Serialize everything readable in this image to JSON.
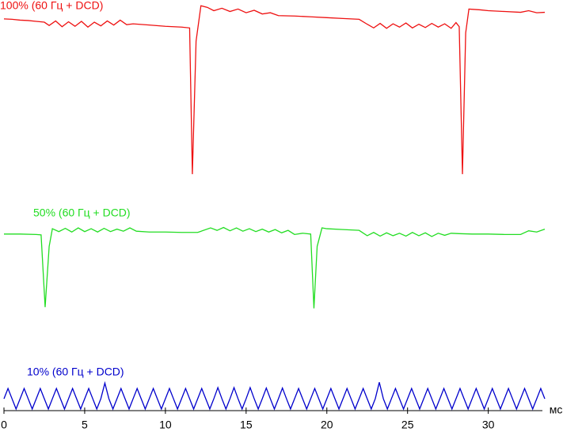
{
  "chart_data": {
    "type": "line",
    "xlabel": "мс",
    "xlim": [
      0,
      33.5
    ],
    "xticks": [
      0,
      5,
      10,
      15,
      20,
      25,
      30
    ],
    "ylim": [
      0,
      100
    ],
    "series": [
      {
        "name": "100% (60 Гц + DCD)",
        "color": "#ee1111",
        "x": [
          0,
          0.5,
          1,
          1.5,
          2,
          2.5,
          2.8,
          3.2,
          3.6,
          4,
          4.4,
          4.8,
          5.2,
          5.6,
          6,
          6.4,
          6.8,
          7.2,
          7.6,
          8,
          9,
          10,
          11,
          11.5,
          11.67,
          11.9,
          12.2,
          12.6,
          13,
          13.5,
          14,
          14.5,
          15,
          15.5,
          16,
          16.5,
          17,
          18,
          19,
          20,
          21,
          22,
          22.5,
          22.9,
          23.3,
          23.7,
          24.1,
          24.5,
          24.9,
          25.3,
          25.7,
          26.1,
          26.5,
          26.9,
          27.3,
          27.7,
          28,
          28.2,
          28.4,
          28.6,
          28.8,
          29.5,
          30,
          31,
          32,
          32.5,
          33,
          33.5
        ],
        "values": [
          95.4,
          95.3,
          95.1,
          95.0,
          94.8,
          94.6,
          93.8,
          94.9,
          93.5,
          94.7,
          93.6,
          94.8,
          93.4,
          94.6,
          93.7,
          94.9,
          93.9,
          95.1,
          94.0,
          94.2,
          93.9,
          93.6,
          93.4,
          93.2,
          57.6,
          90,
          98.6,
          98.2,
          97.4,
          98.0,
          97.2,
          97.8,
          96.9,
          97.5,
          96.6,
          96.9,
          96.2,
          96.1,
          95.9,
          95.7,
          95.5,
          95.3,
          94.1,
          93.2,
          94.3,
          93.1,
          94.2,
          93.4,
          94.4,
          93.2,
          94.1,
          93.3,
          94.3,
          93.4,
          94.2,
          93.1,
          94.5,
          93.5,
          57.6,
          92,
          97.8,
          97.6,
          97.4,
          97.2,
          97.0,
          97.4,
          96.9,
          97.0
        ]
      },
      {
        "name": "50% (60 Гц + DCD)",
        "color": "#22dd22",
        "x": [
          0,
          1,
          2,
          2.3,
          2.55,
          2.8,
          3,
          3.4,
          3.8,
          4.2,
          4.6,
          5,
          5.4,
          5.8,
          6.2,
          6.6,
          7,
          7.4,
          7.8,
          8.2,
          9,
          10,
          11,
          12,
          12.8,
          13.2,
          13.6,
          14,
          14.4,
          14.8,
          15.2,
          15.6,
          16,
          16.4,
          16.8,
          17.2,
          17.6,
          18,
          18.5,
          19,
          19.2,
          19.4,
          19.7,
          20,
          21,
          22,
          22.5,
          22.9,
          23.3,
          23.7,
          24.1,
          24.5,
          24.9,
          25.3,
          25.7,
          26.1,
          26.5,
          26.9,
          27.3,
          27.7,
          28.2,
          29,
          30,
          31,
          32,
          32.5,
          33,
          33.5
        ],
        "values": [
          43.0,
          43.0,
          42.9,
          42.8,
          25.2,
          40,
          44.3,
          43.6,
          44.4,
          43.5,
          44.5,
          43.6,
          44.3,
          43.5,
          44.4,
          43.6,
          44.2,
          43.7,
          44.5,
          43.7,
          43.5,
          43.5,
          43.4,
          43.4,
          44.5,
          43.9,
          44.6,
          43.8,
          44.5,
          43.7,
          44.3,
          43.6,
          44.2,
          43.5,
          44.1,
          43.3,
          43.9,
          42.9,
          43.2,
          43.0,
          24.9,
          40,
          44.5,
          44.3,
          44.1,
          43.9,
          42.6,
          43.4,
          42.5,
          43.3,
          42.6,
          43.2,
          42.5,
          43.4,
          42.6,
          43.3,
          42.4,
          43.2,
          42.7,
          43.2,
          43.1,
          43.0,
          43.0,
          42.9,
          42.9,
          43.8,
          43.5,
          44.2
        ]
      },
      {
        "name": "10% (60 Гц + DCD)",
        "color": "#0000cc",
        "x": [
          0,
          0.25,
          0.5,
          0.75,
          1,
          1.25,
          1.5,
          1.75,
          2,
          2.25,
          2.5,
          2.75,
          3,
          3.25,
          3.5,
          3.75,
          4,
          4.25,
          4.5,
          4.75,
          5,
          5.25,
          5.5,
          5.75,
          6,
          6.25,
          6.5,
          6.75,
          7,
          7.25,
          7.5,
          7.75,
          8,
          8.25,
          8.5,
          8.75,
          9,
          9.25,
          9.5,
          9.75,
          10,
          10.25,
          10.5,
          10.75,
          11,
          11.25,
          11.5,
          11.75,
          12,
          12.25,
          12.5,
          12.75,
          13,
          13.25,
          13.5,
          13.75,
          14,
          14.25,
          14.5,
          14.75,
          15,
          15.25,
          15.5,
          15.75,
          16,
          16.25,
          16.5,
          16.75,
          17,
          17.25,
          17.5,
          17.75,
          18,
          18.25,
          18.5,
          18.75,
          19,
          19.25,
          19.5,
          19.75,
          20,
          20.25,
          20.5,
          20.75,
          21,
          21.25,
          21.5,
          21.75,
          22,
          22.25,
          22.5,
          22.75,
          23,
          23.25,
          23.5,
          23.75,
          24,
          24.25,
          24.5,
          24.75,
          25,
          25.25,
          25.5,
          25.75,
          26,
          26.25,
          26.5,
          26.75,
          27,
          27.25,
          27.5,
          27.75,
          28,
          28.25,
          28.5,
          28.75,
          29,
          29.25,
          29.5,
          29.75,
          30,
          30.25,
          30.5,
          30.75,
          31,
          31.25,
          31.5,
          31.75,
          32,
          32.25,
          32.5,
          32.75,
          33,
          33.25,
          33.5
        ],
        "values": [
          2.9,
          5.4,
          2.9,
          0.4,
          2.9,
          5.4,
          2.9,
          0.4,
          2.9,
          5.4,
          2.9,
          0.4,
          2.9,
          5.4,
          2.9,
          0.4,
          2.9,
          5.4,
          2.9,
          0.4,
          2.9,
          5.4,
          2.9,
          0.4,
          2.9,
          6.7,
          2.9,
          0.4,
          2.9,
          5.4,
          2.9,
          0.4,
          2.9,
          5.4,
          2.9,
          0.4,
          2.9,
          5.4,
          2.9,
          0.4,
          2.9,
          5.4,
          2.9,
          0.4,
          2.9,
          5.4,
          2.9,
          0.4,
          2.9,
          5.4,
          2.9,
          0.4,
          2.9,
          5.6,
          2.9,
          0.4,
          2.9,
          5.6,
          2.9,
          0.4,
          2.9,
          5.6,
          2.9,
          0.4,
          2.9,
          5.5,
          2.9,
          0.4,
          2.9,
          5.5,
          2.9,
          0.4,
          2.9,
          5.4,
          2.9,
          0.4,
          2.9,
          5.4,
          2.9,
          0.4,
          2.9,
          5.4,
          2.9,
          0.4,
          2.9,
          5.4,
          2.9,
          0.4,
          2.9,
          5.4,
          2.9,
          0.4,
          2.9,
          6.9,
          2.9,
          0.4,
          2.9,
          5.4,
          2.9,
          0.4,
          2.9,
          5.4,
          2.9,
          0.4,
          2.9,
          5.4,
          2.9,
          0.4,
          2.9,
          5.4,
          2.9,
          0.4,
          2.9,
          5.4,
          2.9,
          0.4,
          2.9,
          5.4,
          2.9,
          0.4,
          2.9,
          5.4,
          2.9,
          0.4,
          2.9,
          5.4,
          2.9,
          0.4,
          2.9,
          5.4,
          2.9,
          0.4,
          2.9,
          5.4,
          2.9
        ]
      }
    ]
  }
}
